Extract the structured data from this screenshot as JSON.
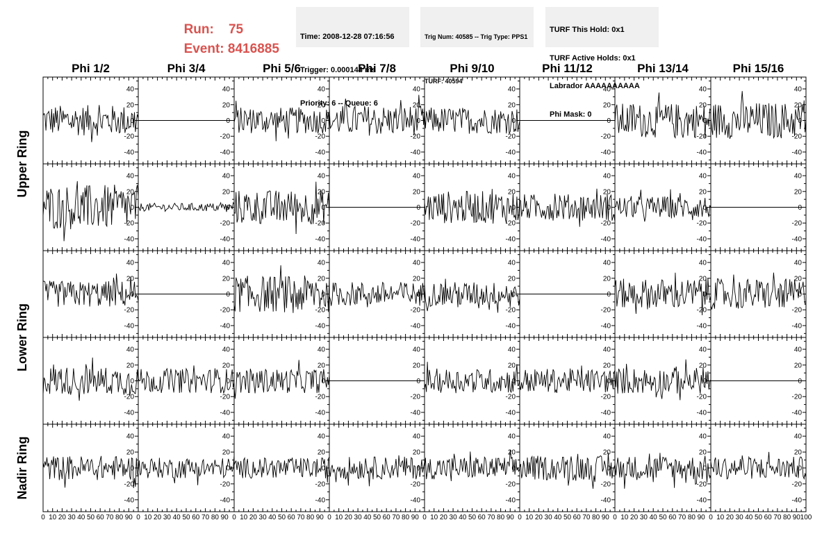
{
  "header": {
    "run_label": "Run:",
    "run_value": "75",
    "event_label": "Event:",
    "event_value": "8416885",
    "time": "Time: 2008-12-28 07:16:56",
    "trigger": "Trigger: 0.000144 ms",
    "priority": "Priority: 6 -- Queue: 6",
    "trig_num": "Trig Num: 40585 -- Trig Type: PPS1",
    "turf": "TURF: 40594",
    "turf_this_hold": "TURF This Hold: 0x1",
    "turf_active_holds": "TURF Active Holds: 0x1",
    "labrador": "Labrador AAAAAAAAAA",
    "phi_mask": "Phi Mask: 0"
  },
  "chart_data": {
    "type": "line",
    "columns": [
      "Phi 1/2",
      "Phi 3/4",
      "Phi 5/6",
      "Phi 7/8",
      "Phi 9/10",
      "Phi 11/12",
      "Phi 13/14",
      "Phi 15/16"
    ],
    "ring_labels": [
      {
        "text": "Upper Ring",
        "rows": [
          0,
          1
        ]
      },
      {
        "text": "Lower Ring",
        "rows": [
          2,
          3
        ]
      },
      {
        "text": "Nadir Ring",
        "rows": [
          4
        ]
      }
    ],
    "xlim": [
      0,
      100
    ],
    "ylim": [
      -55,
      55
    ],
    "xticks": [
      0,
      10,
      20,
      30,
      40,
      50,
      60,
      70,
      80,
      90,
      100
    ],
    "yticks": [
      -40,
      -20,
      0,
      20,
      40
    ],
    "samples_per_trace": 100,
    "amplitudes": [
      [
        15,
        0,
        13,
        15,
        13,
        0,
        17,
        18
      ],
      [
        22,
        4,
        17,
        0,
        16,
        13,
        11,
        0
      ],
      [
        13,
        0,
        18,
        12,
        12,
        0,
        15,
        15
      ],
      [
        14,
        12,
        12,
        0,
        12,
        12,
        13,
        0
      ],
      [
        12,
        10,
        10,
        11,
        11,
        12,
        12,
        11
      ]
    ]
  }
}
